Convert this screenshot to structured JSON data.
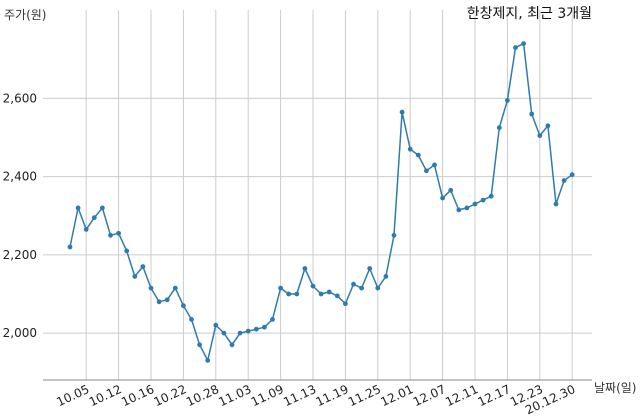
{
  "chart_data": {
    "type": "line",
    "title": "한창제지, 최근 3개월",
    "ylabel": "주가(원)",
    "xlabel": "날짜(일)",
    "ylim": [
      1880,
      2780
    ],
    "yticks": [
      2000,
      2200,
      2400,
      2600
    ],
    "ytick_labels": [
      "2,000",
      "2,200",
      "2,400",
      "2,600"
    ],
    "xtick_labels": [
      "10.05",
      "10.12",
      "10.16",
      "10.22",
      "10.28",
      "11.03",
      "11.09",
      "11.13",
      "11.19",
      "11.25",
      "12.01",
      "12.07",
      "12.11",
      "12.17",
      "12.23",
      "20.12.30"
    ],
    "xtick_positions": [
      2,
      6,
      10,
      14,
      18,
      22,
      26,
      30,
      34,
      38,
      42,
      46,
      50,
      54,
      58,
      62
    ],
    "grid": true,
    "colors": {
      "line": "#2f7bb0",
      "marker": "#2f7bb0"
    },
    "series": [
      {
        "values": [
          2220,
          2320,
          2265,
          2295,
          2320,
          2250,
          2255,
          2210,
          2145,
          2170,
          2115,
          2080,
          2085,
          2115,
          2070,
          2035,
          1970,
          1930,
          2020,
          2000,
          1970,
          2000,
          2005,
          2010,
          2015,
          2035,
          2115,
          2100,
          2100,
          2165,
          2120,
          2100,
          2105,
          2095,
          2075,
          2125,
          2115,
          2165,
          2115,
          2145,
          2250,
          2565,
          2470,
          2455,
          2415,
          2430,
          2345,
          2365,
          2315,
          2320,
          2330,
          2340,
          2350,
          2525,
          2595,
          2730,
          2740,
          2560,
          2505,
          2530,
          2330,
          2390,
          2405
        ]
      }
    ]
  }
}
